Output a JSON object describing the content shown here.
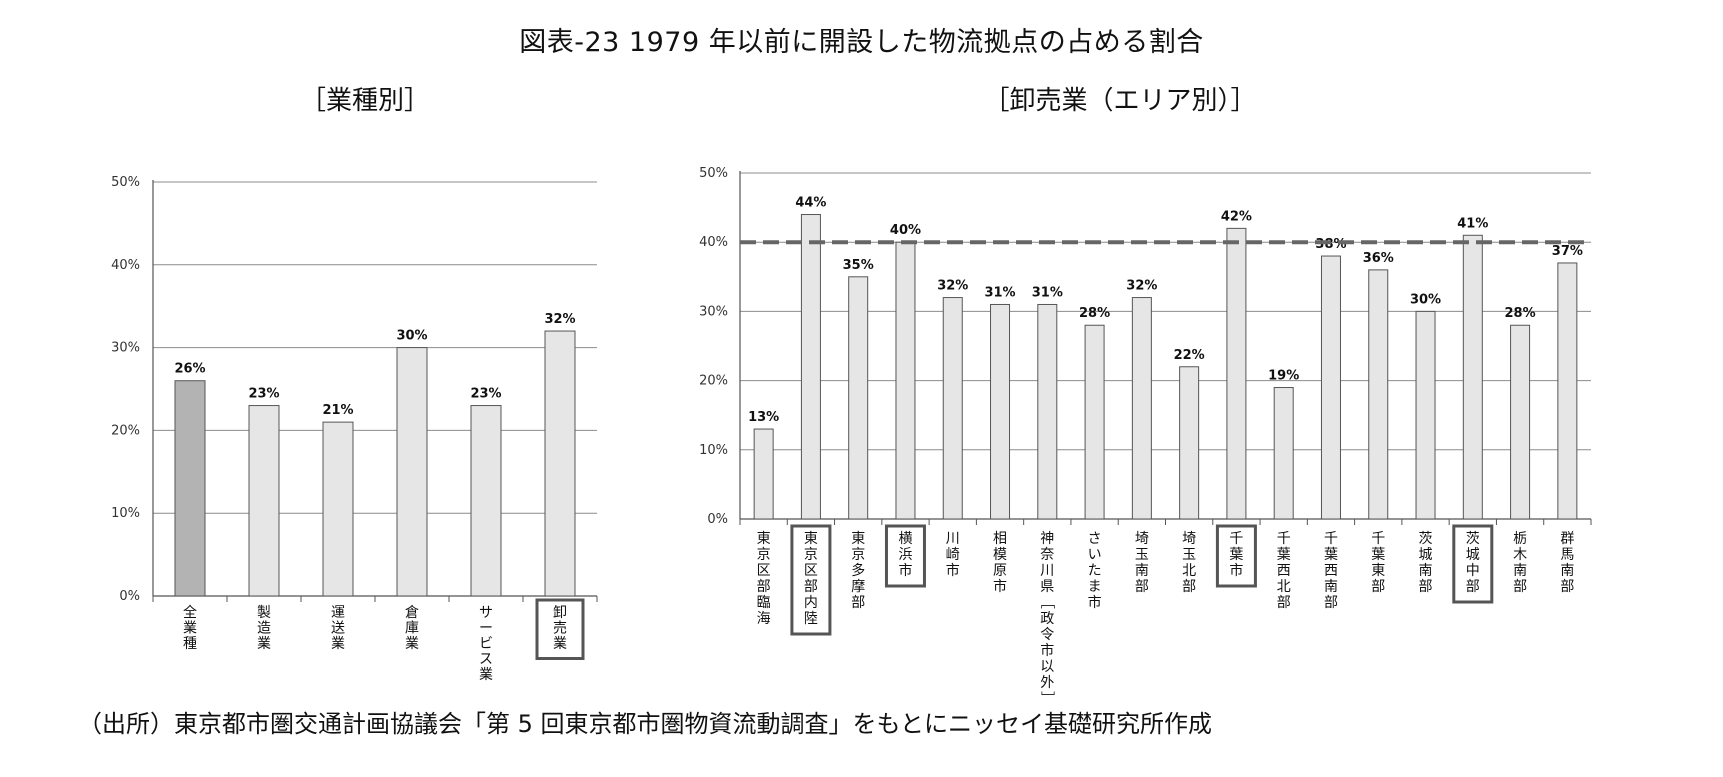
{
  "title": "図表-23 1979 年以前に開設した物流拠点の占める割合",
  "source": "（出所）東京都市圏交通計画協議会「第 5 回東京都市圏物資流動調査」をもとにニッセイ基礎研究所作成",
  "chart_data": [
    {
      "type": "bar",
      "title": "［業種別］",
      "categories": [
        "全業種",
        "製造業",
        "運送業",
        "倉庫業",
        "サービス業",
        "卸売業"
      ],
      "values": [
        26,
        23,
        21,
        30,
        23,
        32
      ],
      "value_labels": [
        "26%",
        "23%",
        "21%",
        "30%",
        "23%",
        "32%"
      ],
      "highlighted": [
        "卸売業"
      ],
      "yticks": [
        "0%",
        "10%",
        "20%",
        "30%",
        "40%",
        "50%"
      ],
      "ylim": [
        0,
        50
      ],
      "grid": true,
      "colors": {
        "default": "#e6e6e6",
        "first": "#b3b3b3"
      }
    },
    {
      "type": "bar",
      "title": "［卸売業（エリア別）］",
      "categories": [
        "東京区部臨海",
        "東京区部内陸",
        "東京多摩部",
        "横浜市",
        "川崎市",
        "相模原市",
        "神奈川県［政令市以外］",
        "さいたま市",
        "埼玉南部",
        "埼玉北部",
        "千葉市",
        "千葉西北部",
        "千葉西南部",
        "千葉東部",
        "茨城南部",
        "茨城中部",
        "栃木南部",
        "群馬南部"
      ],
      "values": [
        13,
        44,
        35,
        40,
        32,
        31,
        31,
        28,
        32,
        22,
        42,
        19,
        38,
        36,
        30,
        41,
        28,
        37
      ],
      "value_labels": [
        "13%",
        "44%",
        "35%",
        "40%",
        "32%",
        "31%",
        "31%",
        "28%",
        "32%",
        "22%",
        "42%",
        "19%",
        "38%",
        "36%",
        "30%",
        "41%",
        "28%",
        "37%"
      ],
      "highlighted": [
        "東京区部内陸",
        "横浜市",
        "千葉市",
        "茨城中部"
      ],
      "reference_line": 40,
      "yticks": [
        "0%",
        "10%",
        "20%",
        "30%",
        "40%",
        "50%"
      ],
      "ylim": [
        0,
        50
      ],
      "grid": true,
      "colors": {
        "default": "#e6e6e6",
        "reference": "#666666"
      }
    }
  ]
}
